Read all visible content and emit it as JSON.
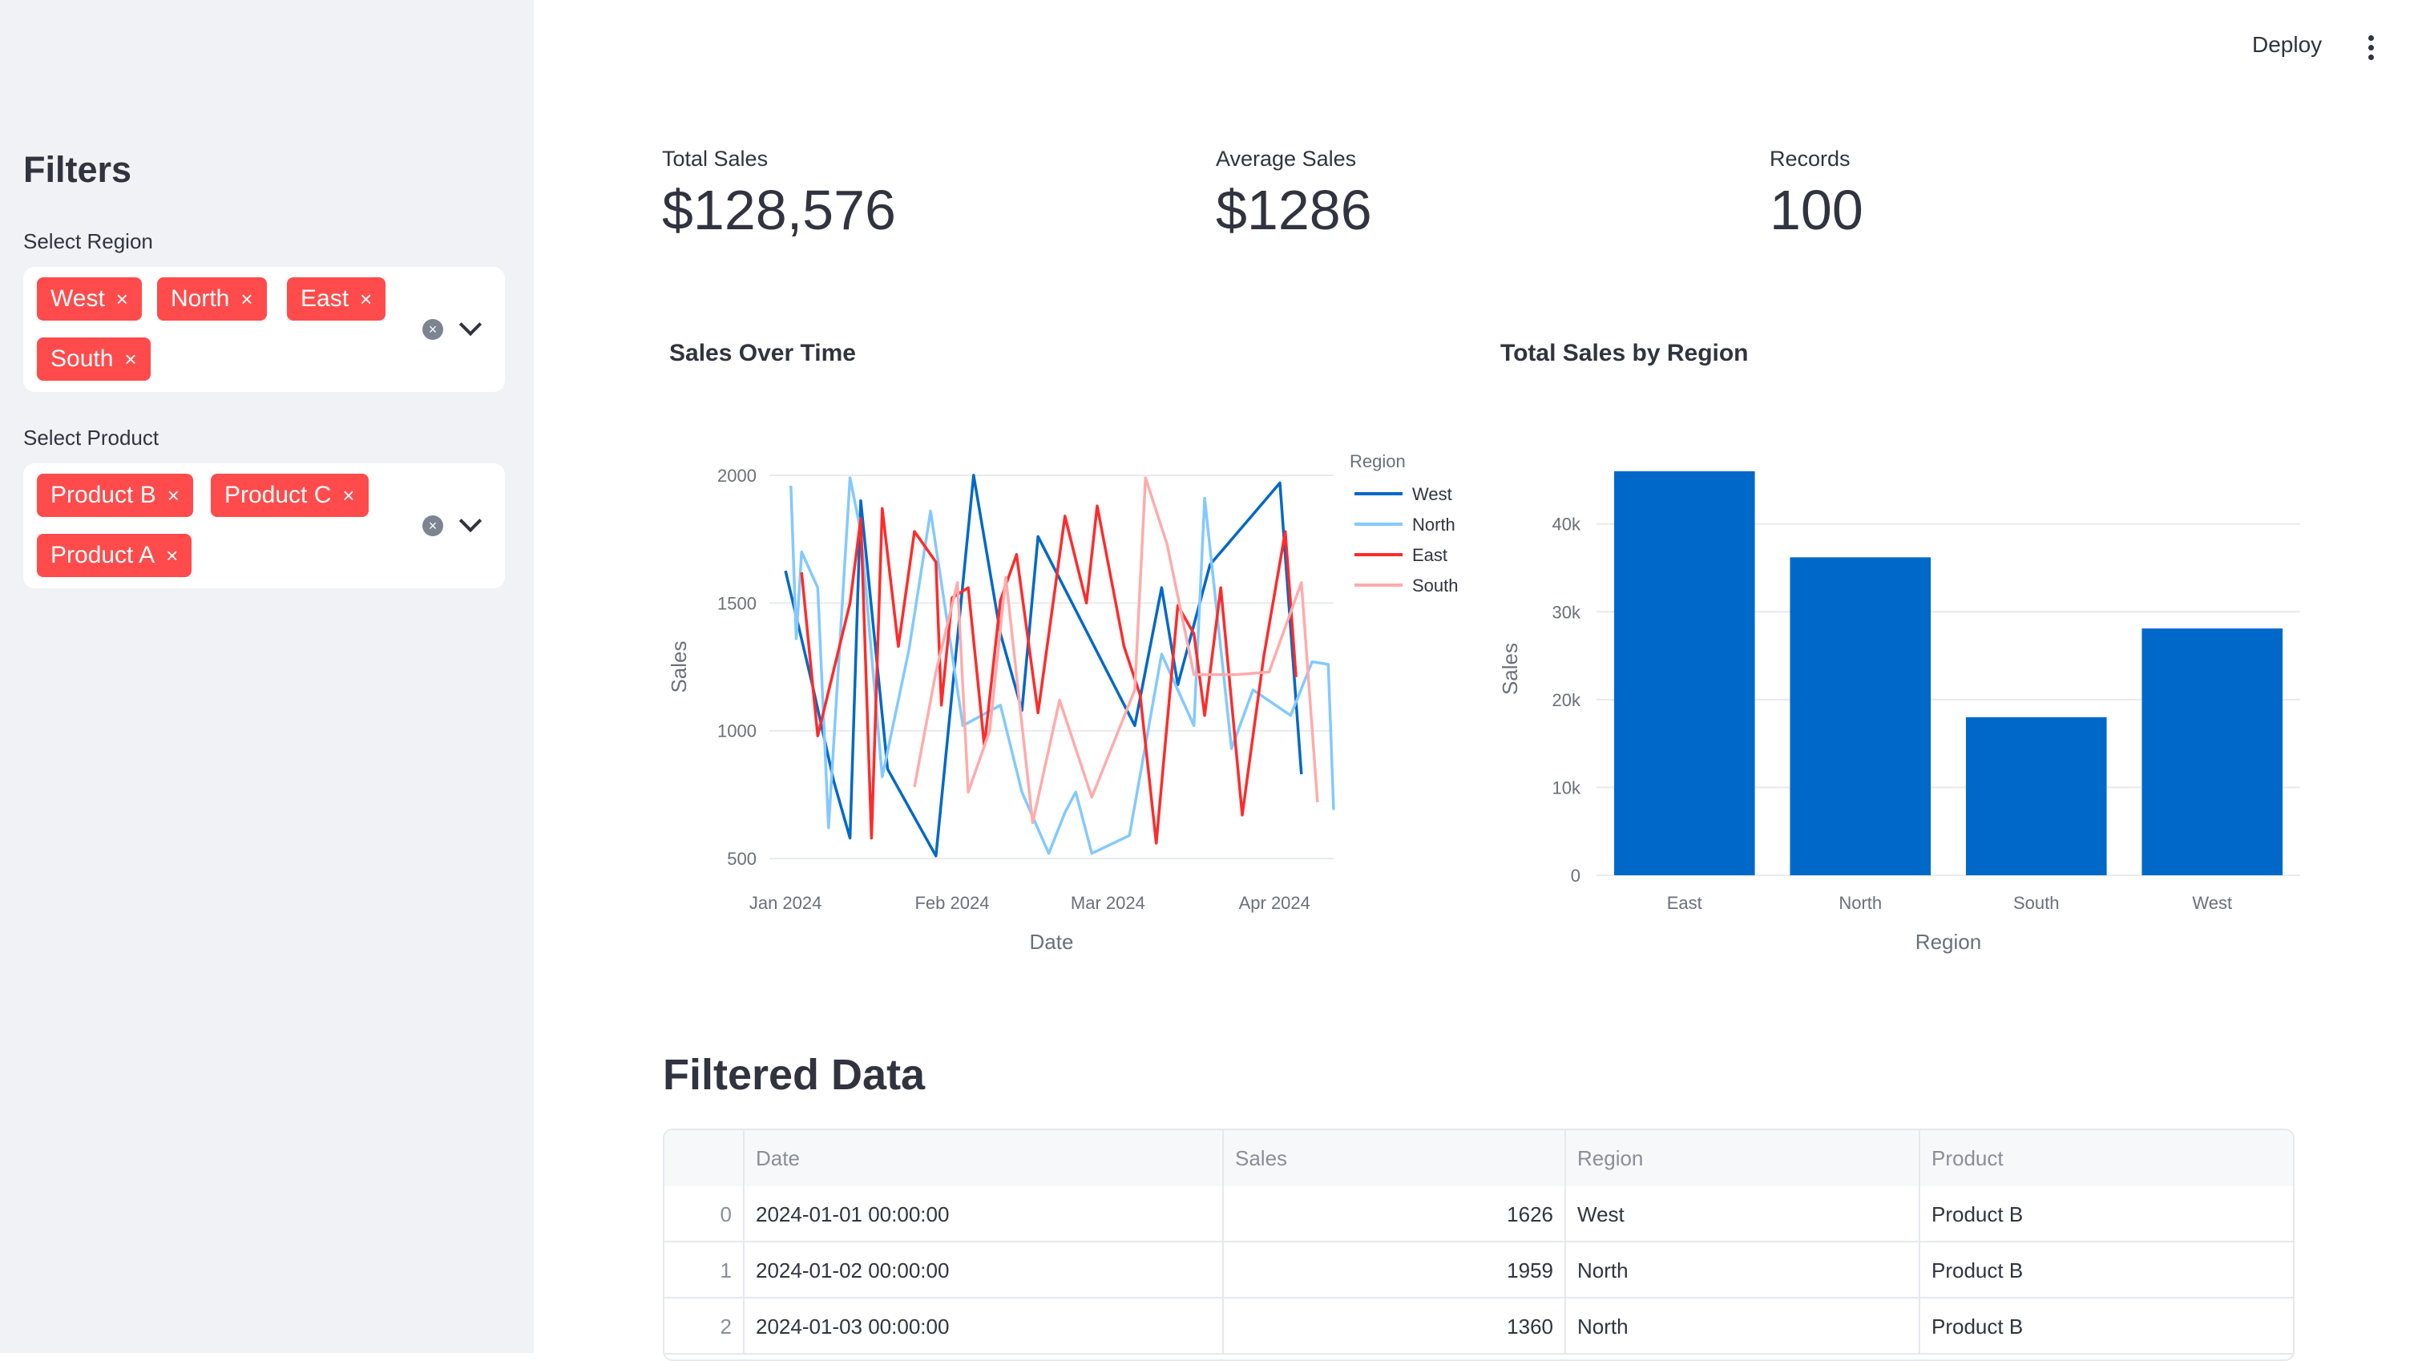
{
  "header": {
    "deploy_label": "Deploy"
  },
  "sidebar": {
    "title": "Filters",
    "region": {
      "label": "Select Region",
      "tags": [
        "West",
        "North",
        "East",
        "South"
      ]
    },
    "product": {
      "label": "Select Product",
      "tags": [
        "Product B",
        "Product C",
        "Product A"
      ]
    },
    "tag_close_glyph": "×",
    "clear_glyph": "×"
  },
  "metrics": [
    {
      "label": "Total Sales",
      "value": "$128,576"
    },
    {
      "label": "Average Sales",
      "value": "$1286"
    },
    {
      "label": "Records",
      "value": "100"
    }
  ],
  "colors": {
    "accent_tag": "#ff4b4b",
    "west": "#0068c9",
    "north": "#83c9ff",
    "east": "#ff2b2b",
    "south": "#ffabab",
    "bar": "#0068c9"
  },
  "chart_data": [
    {
      "type": "line",
      "title": "Sales Over Time",
      "xlabel": "Date",
      "ylabel": "Sales",
      "legend_title": "Region",
      "legend_position": "right",
      "x_ticks": [
        "Jan 2024",
        "Feb 2024",
        "Mar 2024",
        "Apr 2024"
      ],
      "x_tick_dates": [
        "2024-01-01",
        "2024-02-01",
        "2024-03-01",
        "2024-04-01"
      ],
      "x_range": [
        "2023-12-29",
        "2024-04-12"
      ],
      "ylim": [
        450,
        2050
      ],
      "y_ticks": [
        500,
        1000,
        1500,
        2000
      ],
      "grid": true,
      "series": [
        {
          "name": "West",
          "color": "#0068c9",
          "points": [
            [
              "2024-01-01",
              1626
            ],
            [
              "2024-01-06",
              1180
            ],
            [
              "2024-01-10",
              800
            ],
            [
              "2024-01-13",
              580
            ],
            [
              "2024-01-15",
              1900
            ],
            [
              "2024-01-20",
              850
            ],
            [
              "2024-01-29",
              510
            ],
            [
              "2024-02-05",
              2000
            ],
            [
              "2024-02-10",
              1380
            ],
            [
              "2024-02-14",
              1080
            ],
            [
              "2024-02-17",
              1760
            ],
            [
              "2024-03-06",
              1020
            ],
            [
              "2024-03-11",
              1560
            ],
            [
              "2024-03-14",
              1180
            ],
            [
              "2024-03-20",
              1650
            ],
            [
              "2024-04-02",
              1970
            ],
            [
              "2024-04-06",
              830
            ]
          ]
        },
        {
          "name": "North",
          "color": "#83c9ff",
          "points": [
            [
              "2024-01-02",
              1959
            ],
            [
              "2024-01-03",
              1360
            ],
            [
              "2024-01-04",
              1700
            ],
            [
              "2024-01-07",
              1560
            ],
            [
              "2024-01-09",
              620
            ],
            [
              "2024-01-13",
              1990
            ],
            [
              "2024-01-15",
              1780
            ],
            [
              "2024-01-19",
              820
            ],
            [
              "2024-01-24",
              1320
            ],
            [
              "2024-01-28",
              1860
            ],
            [
              "2024-02-03",
              1020
            ],
            [
              "2024-02-10",
              1100
            ],
            [
              "2024-02-14",
              760
            ],
            [
              "2024-02-19",
              520
            ],
            [
              "2024-02-22",
              680
            ],
            [
              "2024-02-24",
              760
            ],
            [
              "2024-02-27",
              520
            ],
            [
              "2024-03-05",
              590
            ],
            [
              "2024-03-11",
              1300
            ],
            [
              "2024-03-17",
              1020
            ],
            [
              "2024-03-19",
              1910
            ],
            [
              "2024-03-24",
              930
            ],
            [
              "2024-03-28",
              1160
            ],
            [
              "2024-04-04",
              1060
            ],
            [
              "2024-04-08",
              1270
            ],
            [
              "2024-04-11",
              1260
            ],
            [
              "2024-04-12",
              690
            ]
          ]
        },
        {
          "name": "East",
          "color": "#ff2b2b",
          "points": [
            [
              "2024-01-04",
              1620
            ],
            [
              "2024-01-07",
              980
            ],
            [
              "2024-01-13",
              1500
            ],
            [
              "2024-01-15",
              1830
            ],
            [
              "2024-01-17",
              580
            ],
            [
              "2024-01-19",
              1870
            ],
            [
              "2024-01-22",
              1330
            ],
            [
              "2024-01-25",
              1780
            ],
            [
              "2024-01-29",
              1660
            ],
            [
              "2024-01-30",
              1100
            ],
            [
              "2024-02-01",
              1520
            ],
            [
              "2024-02-04",
              1560
            ],
            [
              "2024-02-06",
              1150
            ],
            [
              "2024-02-07",
              940
            ],
            [
              "2024-02-10",
              1510
            ],
            [
              "2024-02-13",
              1690
            ],
            [
              "2024-02-17",
              1070
            ],
            [
              "2024-02-22",
              1840
            ],
            [
              "2024-02-26",
              1500
            ],
            [
              "2024-02-28",
              1880
            ],
            [
              "2024-03-04",
              1330
            ],
            [
              "2024-03-07",
              1140
            ],
            [
              "2024-03-10",
              560
            ],
            [
              "2024-03-14",
              1490
            ],
            [
              "2024-03-17",
              1380
            ],
            [
              "2024-03-19",
              1060
            ],
            [
              "2024-03-22",
              1560
            ],
            [
              "2024-03-26",
              670
            ],
            [
              "2024-03-30",
              1290
            ],
            [
              "2024-04-03",
              1780
            ],
            [
              "2024-04-05",
              1210
            ]
          ]
        },
        {
          "name": "South",
          "color": "#ffabab",
          "points": [
            [
              "2024-01-25",
              780
            ],
            [
              "2024-01-29",
              1230
            ],
            [
              "2024-02-02",
              1580
            ],
            [
              "2024-02-04",
              760
            ],
            [
              "2024-02-08",
              1000
            ],
            [
              "2024-02-11",
              1600
            ],
            [
              "2024-02-16",
              640
            ],
            [
              "2024-02-21",
              1120
            ],
            [
              "2024-02-27",
              740
            ],
            [
              "2024-03-06",
              1160
            ],
            [
              "2024-03-08",
              1990
            ],
            [
              "2024-03-12",
              1730
            ],
            [
              "2024-03-17",
              1220
            ],
            [
              "2024-03-25",
              1220
            ],
            [
              "2024-03-31",
              1230
            ],
            [
              "2024-04-06",
              1580
            ],
            [
              "2024-04-09",
              720
            ]
          ]
        }
      ]
    },
    {
      "type": "bar",
      "title": "Total Sales by Region",
      "xlabel": "Region",
      "ylabel": "Sales",
      "categories": [
        "East",
        "North",
        "South",
        "West"
      ],
      "values": [
        46000,
        36200,
        18000,
        28100
      ],
      "ylim": [
        0,
        47000
      ],
      "y_ticks": [
        0,
        10000,
        20000,
        30000,
        40000
      ],
      "y_tick_labels": [
        "0",
        "10k",
        "20k",
        "30k",
        "40k"
      ],
      "grid": true
    }
  ],
  "table": {
    "title": "Filtered Data",
    "columns": [
      "",
      "Date",
      "Sales",
      "Region",
      "Product"
    ],
    "rows": [
      [
        "0",
        "2024-01-01 00:00:00",
        "1626",
        "West",
        "Product B"
      ],
      [
        "1",
        "2024-01-02 00:00:00",
        "1959",
        "North",
        "Product B"
      ],
      [
        "2",
        "2024-01-03 00:00:00",
        "1360",
        "North",
        "Product B"
      ]
    ]
  }
}
